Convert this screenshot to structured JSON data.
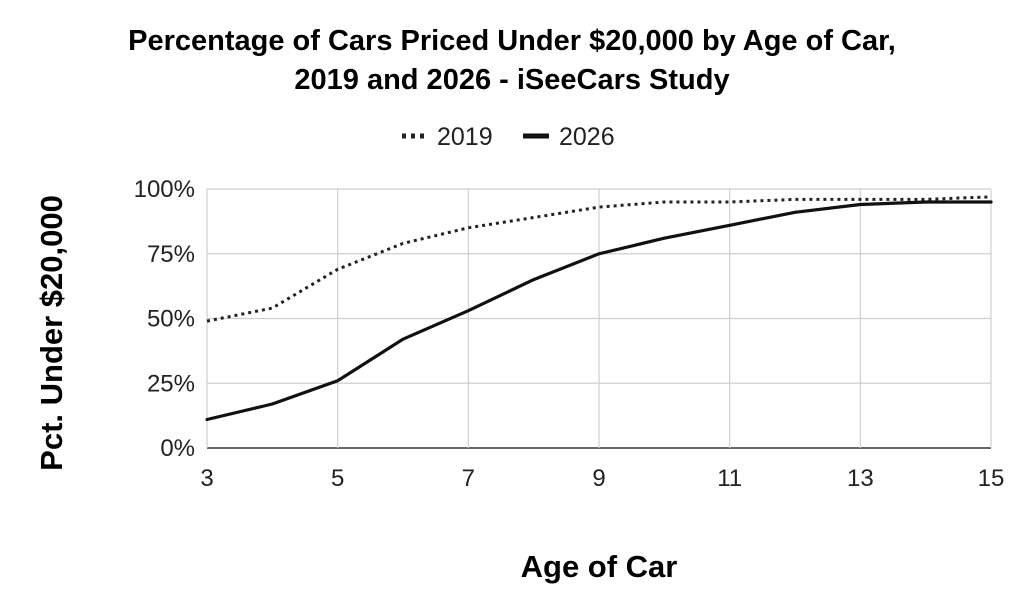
{
  "chart_data": {
    "type": "line",
    "title": "Percentage of Cars Priced Under $20,000 by Age of Car, 2019 and 2026 - iSeeCars Study",
    "title_lines": [
      "Percentage of Cars Priced Under $20,000 by Age of Car,",
      "2019 and 2026 - iSeeCars Study"
    ],
    "xlabel": "Age of Car",
    "ylabel": "Pct. Under $20,000",
    "x": [
      3,
      4,
      5,
      6,
      7,
      8,
      9,
      10,
      11,
      12,
      13,
      14,
      15
    ],
    "x_ticks": [
      "3",
      "5",
      "7",
      "9",
      "11",
      "13",
      "15"
    ],
    "y_ticks": [
      "0%",
      "25%",
      "50%",
      "75%",
      "100%"
    ],
    "xlim": [
      3,
      15
    ],
    "ylim": [
      0,
      100
    ],
    "grid": true,
    "legend_position": "top",
    "series": [
      {
        "name": "2019",
        "style": "dotted",
        "color": "#222222",
        "values": [
          49,
          54,
          69,
          79,
          85,
          89,
          93,
          95,
          95,
          96,
          96,
          96,
          97
        ]
      },
      {
        "name": "2026",
        "style": "solid",
        "color": "#111111",
        "values": [
          11,
          17,
          26,
          42,
          53,
          65,
          75,
          81,
          86,
          91,
          94,
          95,
          95
        ]
      }
    ]
  }
}
